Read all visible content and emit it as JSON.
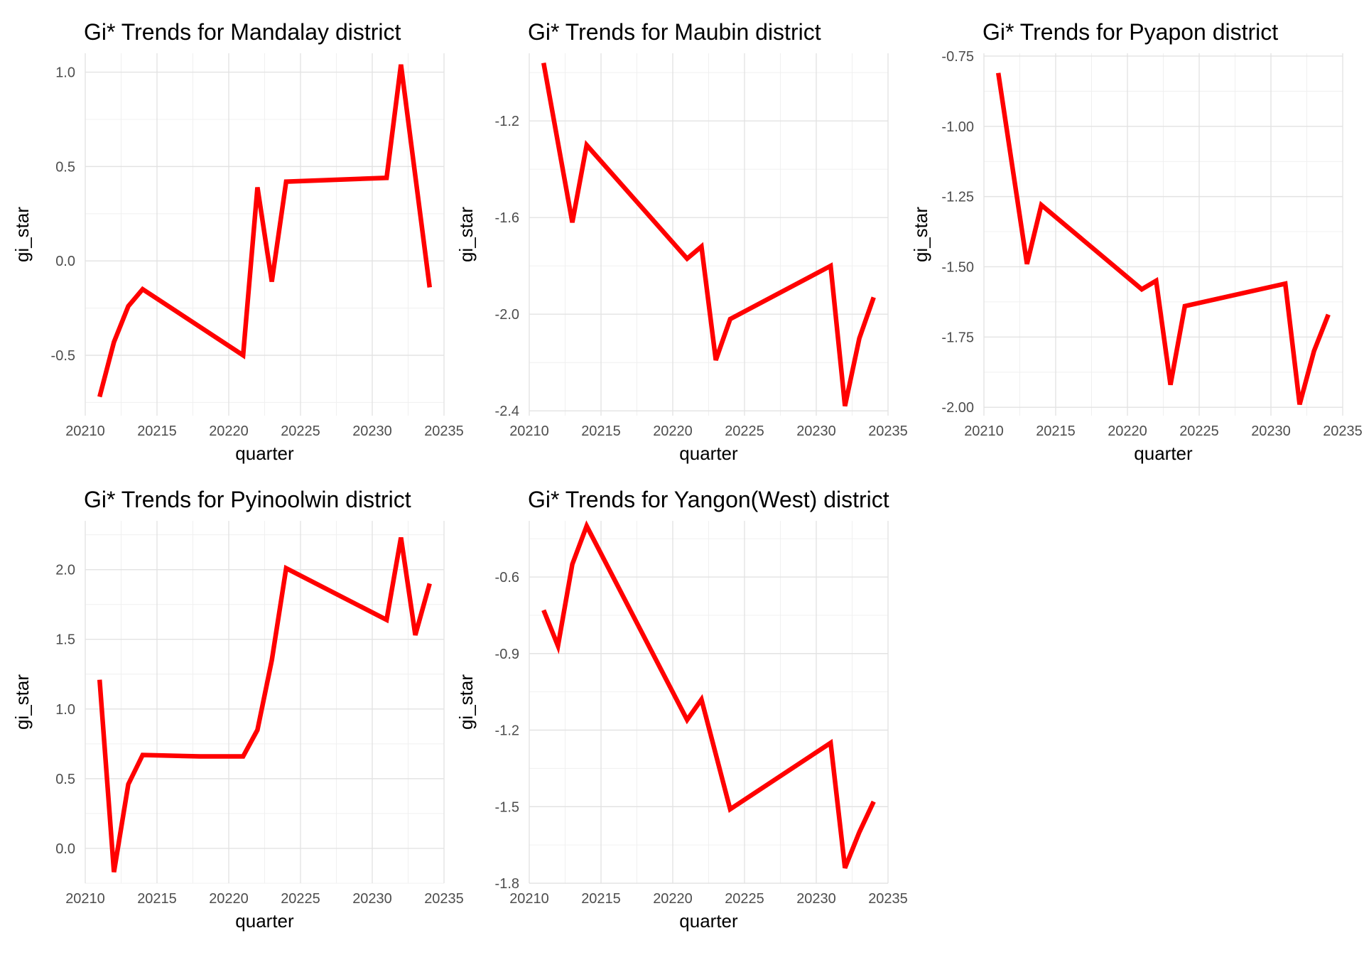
{
  "chart_data": [
    {
      "type": "line",
      "title": "Gi* Trends for Mandalay district",
      "xlabel": "quarter",
      "ylabel": "gi_star",
      "xlim": [
        20210,
        20235
      ],
      "ylim": [
        -0.82,
        1.1
      ],
      "x_ticks": [
        20210,
        20215,
        20220,
        20225,
        20230,
        20235
      ],
      "y_ticks": [
        -0.5,
        0.0,
        0.5,
        1.0
      ],
      "y_tick_labels": [
        "-0.5",
        "0.0",
        "0.5",
        "1.0"
      ],
      "grid": true,
      "color": "#ff0000",
      "series": [
        {
          "x": [
            20211,
            20212,
            20213,
            20214,
            20221,
            20222,
            20223,
            20224,
            20231,
            20232,
            20234
          ],
          "values": [
            -0.72,
            -0.43,
            -0.24,
            -0.15,
            -0.5,
            0.39,
            -0.11,
            0.42,
            0.44,
            1.04,
            -0.14
          ]
        }
      ]
    },
    {
      "type": "line",
      "title": "Gi* Trends for Maubin district",
      "xlabel": "quarter",
      "ylabel": "gi_star",
      "xlim": [
        20210,
        20235
      ],
      "ylim": [
        -2.42,
        -0.92
      ],
      "x_ticks": [
        20210,
        20215,
        20220,
        20225,
        20230,
        20235
      ],
      "y_ticks": [
        -2.4,
        -2.0,
        -1.6,
        -1.2
      ],
      "y_tick_labels": [
        "-2.4",
        "-2.0",
        "-1.6",
        "-1.2"
      ],
      "grid": true,
      "color": "#ff0000",
      "series": [
        {
          "x": [
            20211,
            20213,
            20214,
            20221,
            20222,
            20223,
            20224,
            20231,
            20232,
            20233,
            20234
          ],
          "values": [
            -0.96,
            -1.62,
            -1.3,
            -1.77,
            -1.72,
            -2.19,
            -2.02,
            -1.8,
            -2.38,
            -2.1,
            -1.93
          ]
        }
      ]
    },
    {
      "type": "line",
      "title": "Gi* Trends for Pyapon district",
      "xlabel": "quarter",
      "ylabel": "gi_star",
      "xlim": [
        20210,
        20235
      ],
      "ylim": [
        -2.03,
        -0.74
      ],
      "x_ticks": [
        20210,
        20215,
        20220,
        20225,
        20230,
        20235
      ],
      "y_ticks": [
        -2.0,
        -1.75,
        -1.5,
        -1.25,
        -1.0,
        -0.75
      ],
      "y_tick_labels": [
        "-2.00",
        "-1.75",
        "-1.50",
        "-1.25",
        "-1.00",
        "-0.75"
      ],
      "grid": true,
      "color": "#ff0000",
      "series": [
        {
          "x": [
            20211,
            20213,
            20214,
            20221,
            20222,
            20223,
            20224,
            20231,
            20232,
            20233,
            20234
          ],
          "values": [
            -0.81,
            -1.49,
            -1.28,
            -1.58,
            -1.55,
            -1.92,
            -1.64,
            -1.56,
            -1.99,
            -1.8,
            -1.67
          ]
        }
      ]
    },
    {
      "type": "line",
      "title": "Gi* Trends for Pyinoolwin district",
      "xlabel": "quarter",
      "ylabel": "gi_star",
      "xlim": [
        20210,
        20235
      ],
      "ylim": [
        -0.25,
        2.35
      ],
      "x_ticks": [
        20210,
        20215,
        20220,
        20225,
        20230,
        20235
      ],
      "y_ticks": [
        0.0,
        0.5,
        1.0,
        1.5,
        2.0
      ],
      "y_tick_labels": [
        "0.0",
        "0.5",
        "1.0",
        "1.5",
        "2.0"
      ],
      "grid": true,
      "color": "#ff0000",
      "series": [
        {
          "x": [
            20211,
            20212,
            20213,
            20214,
            20218,
            20221,
            20222,
            20223,
            20224,
            20231,
            20232,
            20233,
            20234
          ],
          "values": [
            1.21,
            -0.17,
            0.46,
            0.67,
            0.66,
            0.66,
            0.85,
            1.35,
            2.01,
            1.64,
            2.23,
            1.53,
            1.9
          ]
        }
      ]
    },
    {
      "type": "line",
      "title": "Gi* Trends for Yangon(West) district",
      "xlabel": "quarter",
      "ylabel": "gi_star",
      "xlim": [
        20210,
        20235
      ],
      "ylim": [
        -1.8,
        -0.38
      ],
      "x_ticks": [
        20210,
        20215,
        20220,
        20225,
        20230,
        20235
      ],
      "y_ticks": [
        -1.8,
        -1.5,
        -1.2,
        -0.9,
        -0.6
      ],
      "y_tick_labels": [
        "-1.8",
        "-1.5",
        "-1.2",
        "-0.9",
        "-0.6"
      ],
      "grid": true,
      "color": "#ff0000",
      "series": [
        {
          "x": [
            20211,
            20212,
            20213,
            20214,
            20221,
            20222,
            20224,
            20231,
            20232,
            20233,
            20234
          ],
          "values": [
            -0.73,
            -0.87,
            -0.55,
            -0.4,
            -1.16,
            -1.08,
            -1.51,
            -1.25,
            -1.74,
            -1.6,
            -1.48
          ]
        }
      ]
    }
  ]
}
